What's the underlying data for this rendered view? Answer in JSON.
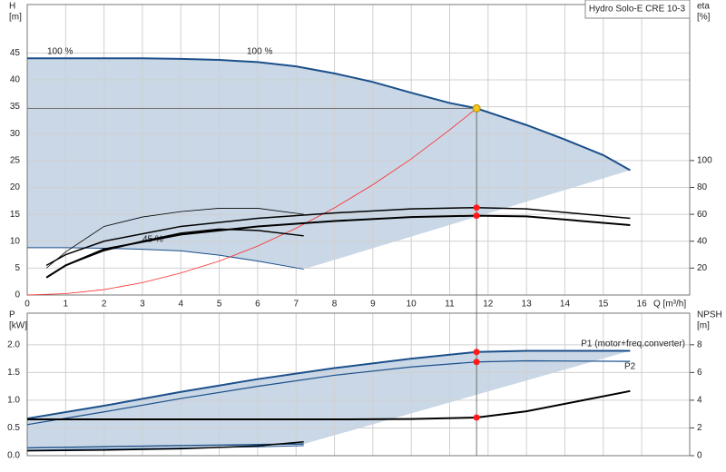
{
  "chart_data": [
    {
      "type": "line",
      "title": "Hydro Solo-E CRE 10-3",
      "x_label": "Q [m³/h]",
      "y_label": "H",
      "y_unit": "[m]",
      "y2_label": "eta",
      "y2_unit": "[%]",
      "xlim": [
        0,
        17.25
      ],
      "xticks": [
        0,
        1,
        2,
        3,
        4,
        5,
        6,
        7,
        8,
        9,
        10,
        11,
        12,
        13,
        14,
        15,
        16
      ],
      "ylim": [
        0,
        54
      ],
      "yticks": [
        0,
        5,
        10,
        15,
        20,
        25,
        30,
        35,
        40,
        45
      ],
      "y2lim": [
        0,
        216
      ],
      "y2ticks": [
        20,
        40,
        60,
        80,
        100
      ],
      "grid": true,
      "area_color": "#c9d7e6",
      "annotations": [
        "100 %",
        "100 %",
        "45 %"
      ],
      "operating_point": {
        "q": 11.7,
        "h": 34.7,
        "color": "#f5c518"
      },
      "series": [
        {
          "color": "#1b4f8a",
          "width": 2,
          "x": [
            0,
            1,
            2,
            3,
            4,
            5,
            6,
            7,
            8,
            9,
            10,
            11,
            11.7,
            13,
            14,
            15,
            15.7
          ],
          "values": [
            44,
            44,
            44,
            44,
            43.9,
            43.7,
            43.3,
            42.5,
            41.2,
            39.6,
            37.6,
            35.7,
            34.7,
            31.6,
            28.9,
            26,
            23.2
          ]
        },
        {
          "color": "#1b4f8a",
          "width": 1,
          "x": [
            0,
            1,
            2,
            3,
            4,
            5,
            6,
            7.2
          ],
          "values": [
            8.8,
            8.8,
            8.7,
            8.5,
            8.2,
            7.4,
            6.3,
            4.8
          ]
        },
        {
          "color": "#ff2a2a",
          "width": 0.8,
          "x": [
            0,
            1,
            2,
            3,
            4,
            5,
            6,
            7,
            8,
            9,
            10,
            11,
            11.7
          ],
          "values": [
            0,
            0.25,
            1,
            2.3,
            4.1,
            6.3,
            9.1,
            12.4,
            16.2,
            20.5,
            25.3,
            30.7,
            34.7
          ]
        },
        {
          "color": "#000000",
          "width": 1.5,
          "axis": "y2",
          "marker": true,
          "x": [
            0.5,
            1,
            2,
            4,
            6,
            8,
            10,
            11.7,
            13,
            15.7
          ],
          "values": [
            22,
            30,
            40,
            51,
            57,
            61,
            64,
            65,
            64,
            57
          ]
        },
        {
          "color": "#000000",
          "width": 2,
          "axis": "y2",
          "marker": true,
          "x": [
            0.5,
            1,
            2,
            4,
            6,
            8,
            10,
            11.7,
            13,
            15.7
          ],
          "values": [
            13,
            22,
            34,
            45,
            51,
            55,
            58,
            59,
            58.5,
            52
          ]
        },
        {
          "color": "#000000",
          "width": 0.8,
          "axis": "y2",
          "x": [
            0.5,
            1,
            2,
            3,
            4,
            5,
            6,
            7.2
          ],
          "values": [
            20,
            32,
            51,
            58,
            62,
            64.5,
            64.5,
            60
          ]
        },
        {
          "color": "#000000",
          "width": 1.5,
          "axis": "y2",
          "x": [
            0.5,
            1,
            2,
            3,
            4,
            5,
            6,
            7.2
          ],
          "values": [
            13,
            22,
            33,
            40,
            46,
            49,
            48,
            44
          ]
        }
      ]
    },
    {
      "type": "line",
      "y_label": "P",
      "y_unit": "[kW]",
      "y2_label": "NPSH",
      "y2_unit": "[m]",
      "xlim": [
        0,
        17.25
      ],
      "xticks": [
        0,
        1,
        2,
        3,
        4,
        5,
        6,
        7,
        8,
        9,
        10,
        11,
        12,
        13,
        14,
        15,
        16
      ],
      "ylim": [
        0,
        2.57
      ],
      "yticks": [
        {
          "value": 0,
          "label": "0.0"
        },
        0.5,
        {
          "value": 1,
          "label": "1.0"
        },
        1.5,
        {
          "value": 2,
          "label": "2.0"
        }
      ],
      "y2lim": [
        0,
        10.28
      ],
      "y2ticks": [
        0,
        2,
        4,
        6,
        8
      ],
      "grid": true,
      "area_color": "#c9d7e6",
      "series": [
        {
          "name": "P1 (motor+freq.converter)",
          "color": "#1b4f8a",
          "width": 2,
          "marker": true,
          "x": [
            0,
            2,
            4,
            6,
            8,
            10,
            11.7,
            13,
            15.7
          ],
          "values": [
            0.67,
            0.9,
            1.15,
            1.38,
            1.58,
            1.75,
            1.87,
            1.89,
            1.89
          ]
        },
        {
          "name": "P2",
          "color": "#1b4f8a",
          "width": 1.2,
          "marker": true,
          "x": [
            0,
            2,
            4,
            6,
            8,
            10,
            11.7,
            13,
            15.7
          ],
          "values": [
            0.56,
            0.79,
            1.03,
            1.25,
            1.45,
            1.6,
            1.69,
            1.71,
            1.7
          ]
        },
        {
          "color": "#000000",
          "width": 2,
          "axis": "y2",
          "marker": true,
          "x": [
            0,
            2,
            4,
            6,
            8,
            10,
            11.7,
            13,
            15.7
          ],
          "values": [
            2.62,
            2.62,
            2.62,
            2.62,
            2.62,
            2.64,
            2.75,
            3.2,
            4.66
          ]
        },
        {
          "color": "#1b4f8a",
          "width": 1.5,
          "x": [
            0,
            2,
            4,
            6,
            7.2
          ],
          "values": [
            0.14,
            0.16,
            0.18,
            0.2,
            0.21
          ]
        },
        {
          "color": "#1b4f8a",
          "width": 1,
          "x": [
            0,
            2,
            4,
            6,
            7.2
          ],
          "values": [
            0.1,
            0.12,
            0.14,
            0.16,
            0.18
          ]
        },
        {
          "color": "#000000",
          "width": 1.5,
          "axis": "y2",
          "x": [
            0,
            2,
            4,
            6,
            7.2
          ],
          "values": [
            0.35,
            0.4,
            0.5,
            0.7,
            1.0
          ]
        }
      ]
    }
  ]
}
